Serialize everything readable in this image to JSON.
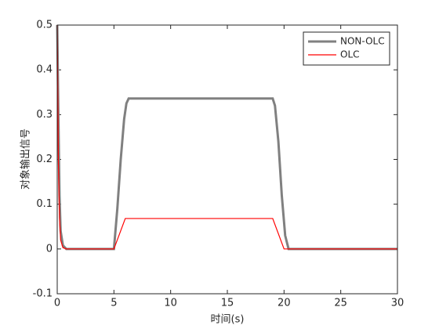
{
  "chart_data": {
    "type": "line",
    "xlabel": "时间(s)",
    "ylabel": "对象输出信号",
    "series": [
      {
        "name": "NON-OLC",
        "color": "#808080",
        "x": [
          0,
          0.1,
          0.2,
          0.3,
          0.5,
          0.8,
          5,
          5.3,
          5.6,
          5.9,
          6.1,
          6.3,
          19,
          19.2,
          19.5,
          19.8,
          20.1,
          20.4,
          30
        ],
        "values": [
          0.5,
          0.3,
          0.12,
          0.04,
          0.008,
          0,
          0,
          0.09,
          0.2,
          0.29,
          0.325,
          0.336,
          0.336,
          0.32,
          0.24,
          0.12,
          0.03,
          0,
          0
        ]
      },
      {
        "name": "OLC",
        "color": "#ff0000",
        "x": [
          0,
          0.05,
          0.1,
          0.2,
          0.3,
          0.5,
          0.8,
          5,
          6,
          19,
          20,
          30
        ],
        "values": [
          0.5,
          0.35,
          0.2,
          0.07,
          0.02,
          0.003,
          0,
          0,
          0.068,
          0.068,
          0,
          0
        ]
      }
    ],
    "xlim": [
      0,
      30
    ],
    "xticks": [
      0,
      5,
      10,
      15,
      20,
      25,
      30
    ],
    "ylim": [
      -0.1,
      0.5
    ],
    "yticks": [
      -0.1,
      0,
      0.1,
      0.2,
      0.3,
      0.4,
      0.5
    ],
    "grid": false,
    "legend": "top-right"
  }
}
